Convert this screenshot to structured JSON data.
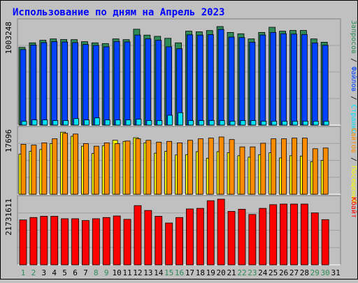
{
  "title": "Использование по дням на Апрель 2023",
  "colors": {
    "page_bg": "#c0c0c0",
    "plot_bg": "#c0c0c0",
    "title": "#0000ff",
    "axis_label": "#000000",
    "weekday": "#000000",
    "weekend": "#2e8b57",
    "zapros": "#2e8b57",
    "faily": "#0042ff",
    "stranitsy": "#00e0ff",
    "posesheniya": "#ffff00",
    "saity": "#ff8c00",
    "kbait": "#ff0000",
    "separator": "#000000"
  },
  "chart_data": [
    {
      "type": "bar",
      "panel": "top",
      "scale_label": "1003248",
      "ylim": [
        0,
        1003248
      ],
      "categories": [
        "1",
        "2",
        "3",
        "4",
        "5",
        "6",
        "7",
        "8",
        "9",
        "10",
        "11",
        "12",
        "13",
        "14",
        "15",
        "16",
        "17",
        "18",
        "19",
        "20",
        "21",
        "22",
        "23",
        "24",
        "25",
        "26",
        "27",
        "28",
        "29",
        "30",
        "31"
      ],
      "weekend_days": [
        "1",
        "2",
        "8",
        "9",
        "15",
        "16",
        "22",
        "23",
        "29",
        "30"
      ],
      "legend": [
        {
          "text": "Запросов",
          "color": "#2e8b57"
        },
        {
          "text": "/",
          "color": "#000000"
        },
        {
          "text": "Файлов",
          "color": "#0042ff"
        },
        {
          "text": "/",
          "color": "#000000"
        },
        {
          "text": "Страниц",
          "color": "#00e0ff"
        }
      ],
      "series": [
        {
          "name": "Запросов",
          "color": "#2e8b57",
          "values": [
            754000,
            798000,
            823000,
            836000,
            830000,
            829000,
            809000,
            798000,
            791000,
            836000,
            829000,
            930000,
            873000,
            861000,
            842000,
            798000,
            911000,
            905000,
            917000,
            956000,
            899000,
            886000,
            836000,
            899000,
            949000,
            911000,
            918000,
            918000,
            836000,
            804000,
            0
          ]
        },
        {
          "name": "Файлов",
          "color": "#0042ff",
          "values": [
            733000,
            777000,
            800000,
            810000,
            806000,
            800000,
            782000,
            773000,
            760000,
            811000,
            807000,
            874000,
            837000,
            823000,
            760000,
            741000,
            876000,
            873000,
            878000,
            928000,
            854000,
            849000,
            804000,
            874000,
            899000,
            887000,
            883000,
            879000,
            797000,
            774000,
            0
          ]
        },
        {
          "name": "Страниц",
          "color": "#00e0ff",
          "values": [
            38000,
            50000,
            50000,
            44000,
            44000,
            63000,
            50000,
            70000,
            50000,
            50000,
            50000,
            57000,
            44000,
            44000,
            95000,
            120000,
            44000,
            44000,
            44000,
            44000,
            38000,
            44000,
            44000,
            38000,
            38000,
            38000,
            38000,
            38000,
            38000,
            38000,
            0
          ]
        }
      ]
    },
    {
      "type": "bar",
      "panel": "middle",
      "scale_label": "17696",
      "ylim": [
        0,
        17696
      ],
      "categories": [
        "1",
        "2",
        "3",
        "4",
        "5",
        "6",
        "7",
        "8",
        "9",
        "10",
        "11",
        "12",
        "13",
        "14",
        "15",
        "16",
        "17",
        "18",
        "19",
        "20",
        "21",
        "22",
        "23",
        "24",
        "25",
        "26",
        "27",
        "28",
        "29",
        "30",
        "31"
      ],
      "legend": [
        {
          "text": "Сайтов",
          "color": "#ff8c00"
        },
        {
          "text": "/",
          "color": "#000000"
        },
        {
          "text": "Посещений",
          "color": "#ffff00"
        }
      ],
      "series": [
        {
          "name": "Посещений",
          "color": "#ffff00",
          "values": [
            10900,
            11700,
            12200,
            13800,
            16900,
            15800,
            13100,
            11100,
            13200,
            14700,
            14400,
            15400,
            14000,
            11200,
            11700,
            10700,
            10800,
            11600,
            9800,
            11600,
            11300,
            10500,
            10100,
            10800,
            11300,
            9900,
            10500,
            10400,
            8900,
            9200,
            0
          ]
        },
        {
          "name": "Сайтов",
          "color": "#ff8c00",
          "values": [
            13600,
            13400,
            14000,
            15100,
            16600,
            16400,
            13800,
            13100,
            14000,
            13800,
            14500,
            15100,
            14700,
            14200,
            14400,
            14000,
            14700,
            15100,
            15300,
            15600,
            14900,
            12900,
            12900,
            13900,
            15100,
            15100,
            15300,
            15300,
            12400,
            12600,
            0
          ]
        }
      ]
    },
    {
      "type": "bar",
      "panel": "bottom",
      "scale_label": "21731611",
      "ylim": [
        0,
        21731611
      ],
      "categories": [
        "1",
        "2",
        "3",
        "4",
        "5",
        "6",
        "7",
        "8",
        "9",
        "10",
        "11",
        "12",
        "13",
        "14",
        "15",
        "16",
        "17",
        "18",
        "19",
        "20",
        "21",
        "22",
        "23",
        "24",
        "25",
        "26",
        "27",
        "28",
        "29",
        "30",
        "31"
      ],
      "legend": [
        {
          "text": "Кбайт",
          "color": "#ff0000"
        }
      ],
      "series": [
        {
          "name": "Кбайт",
          "color": "#ff0000",
          "values": [
            14700000,
            15500000,
            15900000,
            15900000,
            15100000,
            15100000,
            14500000,
            15100000,
            15500000,
            16000000,
            14900000,
            19400000,
            17800000,
            15900000,
            13700000,
            15500000,
            18300000,
            18500000,
            21000000,
            21500000,
            17500000,
            18200000,
            16500000,
            18500000,
            19700000,
            19900000,
            19900000,
            19900000,
            17000000,
            14800000,
            0
          ]
        }
      ]
    }
  ]
}
